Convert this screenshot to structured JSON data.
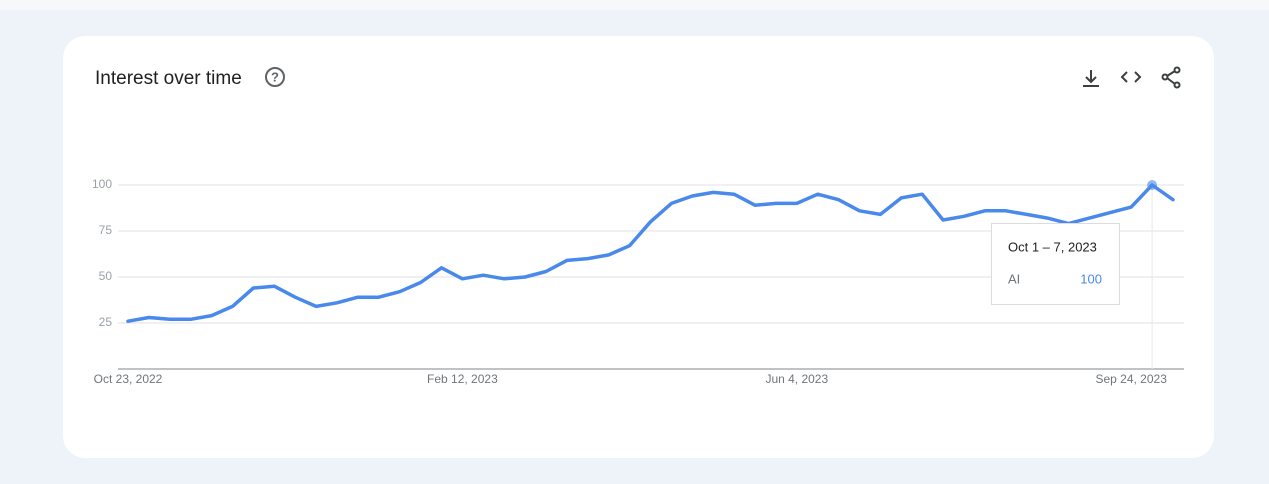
{
  "chart_data": {
    "type": "line",
    "title": "Interest over time",
    "categories": [
      "Oct 23, 2022",
      null,
      null,
      null,
      null,
      null,
      null,
      null,
      null,
      null,
      null,
      null,
      null,
      null,
      null,
      null,
      "Feb 12, 2023",
      null,
      null,
      null,
      null,
      null,
      null,
      null,
      null,
      null,
      null,
      null,
      null,
      null,
      null,
      null,
      "Jun 4, 2023",
      null,
      null,
      null,
      null,
      null,
      null,
      null,
      null,
      null,
      null,
      null,
      null,
      null,
      null,
      null,
      "Sep 24, 2023",
      null,
      null
    ],
    "series": [
      {
        "name": "AI",
        "color": "#4a89ec",
        "values": [
          26,
          28,
          27,
          27,
          29,
          34,
          44,
          45,
          39,
          34,
          36,
          39,
          39,
          42,
          47,
          55,
          49,
          51,
          49,
          50,
          53,
          59,
          60,
          62,
          67,
          80,
          90,
          94,
          96,
          95,
          89,
          90,
          90,
          95,
          92,
          86,
          84,
          93,
          95,
          81,
          83,
          86,
          86,
          84,
          82,
          79,
          82,
          85,
          88,
          100,
          92
        ]
      }
    ],
    "ylim": [
      0,
      100
    ],
    "yticks": [
      25,
      50,
      75,
      100
    ],
    "grid": true,
    "tooltip_title": "Oct 1 – 7, 2023",
    "highlight_index": 49
  }
}
